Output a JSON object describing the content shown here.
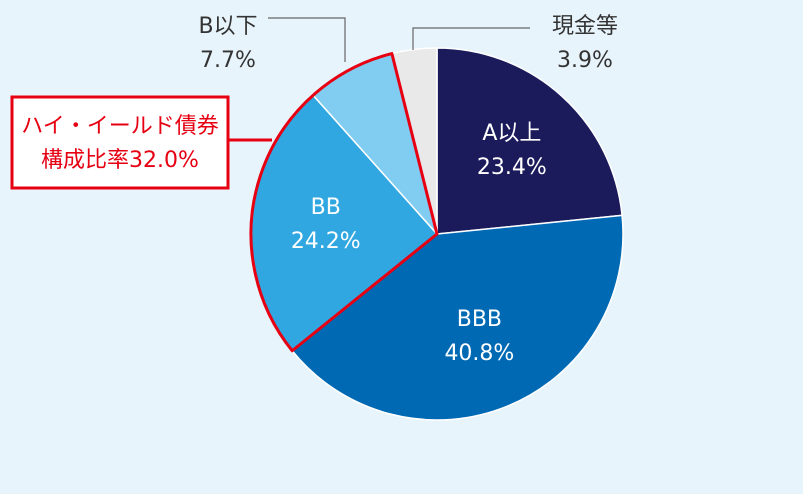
{
  "chart_data": {
    "type": "pie",
    "categories": [
      "A以上",
      "BBB",
      "BB",
      "B以下",
      "現金等"
    ],
    "values": [
      23.4,
      40.8,
      24.2,
      7.7,
      3.9
    ],
    "value_labels": [
      "23.4%",
      "40.8%",
      "24.2%",
      "7.7%",
      "3.9%"
    ],
    "colors": [
      "#1b1b5c",
      "#0069b4",
      "#30a7e1",
      "#80cdf1",
      "#e9e9e9"
    ],
    "annotation": [
      "ハイ・イールド債券",
      "構成比率32.0%"
    ]
  }
}
